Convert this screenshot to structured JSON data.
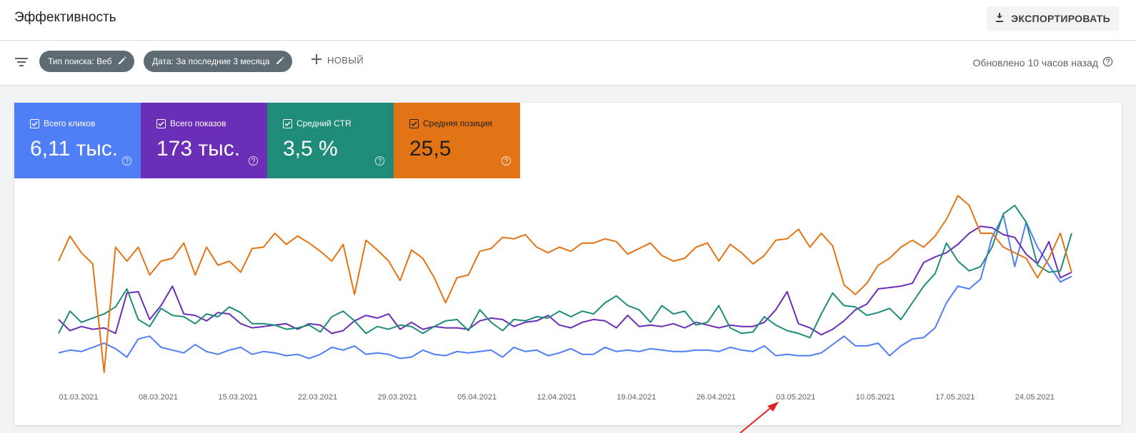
{
  "header": {
    "title": "Эффективность",
    "export_label": "ЭКСПОРТИРОВАТЬ"
  },
  "filters": {
    "chips": [
      {
        "label": "Тип поиска: Веб"
      },
      {
        "label": "Дата: За последние 3 месяца"
      }
    ],
    "new_label": "НОВЫЙ",
    "updated_text": "Обновлено 10 часов назад"
  },
  "metrics": [
    {
      "label": "Всего кликов",
      "value": "6,11 тыс.",
      "color": "#4f7ef6",
      "checked": true
    },
    {
      "label": "Всего показов",
      "value": "173 тыс.",
      "color": "#6a2fb6",
      "checked": true
    },
    {
      "label": "Средний CTR",
      "value": "3,5 %",
      "color": "#1f8c7a",
      "checked": true
    },
    {
      "label": "Средняя позиция",
      "value": "25,5",
      "color": "#e37415",
      "checked": true
    }
  ],
  "chart_data": {
    "type": "line",
    "x_ticks": [
      "01.03.2021",
      "08.03.2021",
      "15.03.2021",
      "22.03.2021",
      "29.03.2021",
      "05.04.2021",
      "12.04.2021",
      "19.04.2021",
      "26.04.2021",
      "03.05.2021",
      "10.05.2021",
      "17.05.2021",
      "24.05.2021"
    ],
    "x_start": "01.03.2021",
    "days": 90,
    "y_scale": "normalized, 0-100, no axis labels shown",
    "series": [
      {
        "color": "#4f7ef6",
        "values": [
          14,
          16,
          15,
          18,
          21,
          17,
          11,
          24,
          26,
          18,
          16,
          14,
          20,
          15,
          13,
          16,
          18,
          13,
          15,
          14,
          12,
          13,
          10,
          13,
          18,
          16,
          19,
          13,
          14,
          13,
          10,
          11,
          16,
          13,
          12,
          15,
          14,
          15,
          16,
          11,
          18,
          15,
          16,
          12,
          14,
          17,
          13,
          13,
          18,
          15,
          16,
          15,
          17,
          16,
          15,
          15,
          16,
          16,
          15,
          18,
          16,
          15,
          19,
          12,
          13,
          12,
          12,
          14,
          20,
          26,
          19,
          19,
          21,
          12,
          19,
          24,
          25,
          32,
          50,
          62,
          60,
          67,
          97,
          113,
          76,
          108,
          90,
          77,
          65,
          69
        ]
      },
      {
        "color": "#6a2fb6",
        "values": [
          38,
          30,
          33,
          31,
          32,
          28,
          57,
          58,
          38,
          48,
          62,
          42,
          41,
          37,
          43,
          42,
          35,
          32,
          33,
          34,
          35,
          31,
          35,
          34,
          28,
          30,
          37,
          41,
          39,
          42,
          31,
          36,
          31,
          33,
          32,
          32,
          31,
          37,
          39,
          38,
          33,
          36,
          37,
          41,
          34,
          32,
          36,
          38,
          37,
          32,
          41,
          33,
          34,
          33,
          35,
          32,
          36,
          34,
          32,
          34,
          33,
          33,
          36,
          45,
          58,
          35,
          32,
          27,
          31,
          37,
          45,
          49,
          60,
          61,
          62,
          64,
          79,
          83,
          86,
          92,
          100,
          105,
          104,
          99,
          97,
          85,
          78,
          94,
          68,
          72
        ]
      },
      {
        "color": "#1f8c7a",
        "values": [
          28,
          44,
          36,
          39,
          42,
          47,
          60,
          38,
          33,
          46,
          41,
          40,
          35,
          42,
          40,
          47,
          43,
          35,
          35,
          34,
          31,
          32,
          34,
          29,
          40,
          44,
          37,
          28,
          33,
          31,
          34,
          33,
          28,
          33,
          37,
          38,
          30,
          45,
          36,
          30,
          38,
          37,
          40,
          39,
          44,
          40,
          44,
          42,
          50,
          55,
          48,
          45,
          36,
          48,
          42,
          44,
          34,
          36,
          48,
          32,
          28,
          29,
          40,
          34,
          30,
          28,
          25,
          42,
          57,
          48,
          47,
          41,
          43,
          46,
          38,
          50,
          62,
          71,
          93,
          80,
          73,
          76,
          90,
          114,
          120,
          108,
          77,
          72,
          73,
          100
        ]
      },
      {
        "color": "#e37415",
        "values": [
          80,
          98,
          86,
          78,
          0,
          90,
          80,
          90,
          70,
          80,
          82,
          93,
          70,
          90,
          77,
          80,
          72,
          89,
          90,
          100,
          92,
          98,
          93,
          87,
          80,
          92,
          56,
          95,
          88,
          80,
          66,
          88,
          82,
          68,
          50,
          68,
          70,
          87,
          89,
          97,
          96,
          99,
          90,
          86,
          90,
          87,
          93,
          93,
          96,
          94,
          85,
          89,
          93,
          84,
          80,
          82,
          90,
          93,
          80,
          92,
          86,
          78,
          84,
          95,
          96,
          103,
          90,
          100,
          91,
          63,
          56,
          64,
          77,
          82,
          90,
          95,
          90,
          98,
          110,
          127,
          120,
          100,
          100,
          90,
          86,
          82,
          68,
          82,
          100,
          72
        ]
      }
    ]
  }
}
